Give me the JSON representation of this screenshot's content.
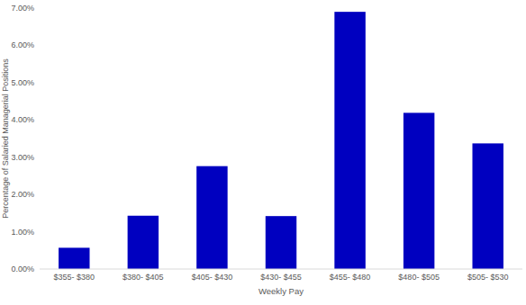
{
  "chart_data": {
    "type": "bar",
    "x_label": "Weekly Pay",
    "y_label": "Percentage of Salaried Managerial Positions",
    "categories": [
      "$355- $380",
      "$380- $405",
      "$405- $430",
      "$430- $455",
      "$455- $480",
      "$480- $505",
      "$505- $530"
    ],
    "values": [
      0.57,
      1.43,
      2.76,
      1.42,
      6.9,
      4.19,
      3.37
    ],
    "color": "#0000c0",
    "ylim": [
      0,
      7
    ],
    "yticks": [
      {
        "value": 0,
        "label": "0.00%"
      },
      {
        "value": 1,
        "label": "1.00%"
      },
      {
        "value": 2,
        "label": "2.00%"
      },
      {
        "value": 3,
        "label": "3.00%"
      },
      {
        "value": 4,
        "label": "4.00%"
      },
      {
        "value": 5,
        "label": "5.00%"
      },
      {
        "value": 6,
        "label": "6.00%"
      },
      {
        "value": 7,
        "label": "7.00%"
      }
    ],
    "grid": false
  }
}
